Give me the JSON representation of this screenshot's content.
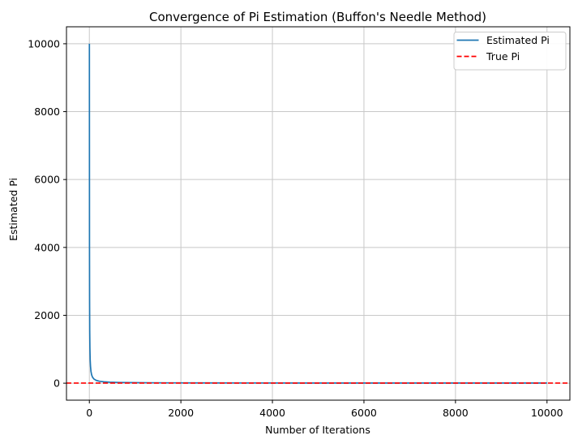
{
  "chart_data": {
    "type": "line",
    "title": "Convergence of Pi Estimation (Buffon's Needle Method)",
    "xlabel": "Number of Iterations",
    "ylabel": "Estimated Pi",
    "xlim": [
      -500,
      10500
    ],
    "ylim": [
      -500,
      10500
    ],
    "x_ticks": [
      0,
      2000,
      4000,
      6000,
      8000,
      10000
    ],
    "y_ticks": [
      0,
      2000,
      4000,
      6000,
      8000,
      10000
    ],
    "grid": true,
    "grid_color": "#c8c8c8",
    "spine_color": "#000000",
    "legend_position": "upper right",
    "legend": [
      {
        "label": "Estimated Pi",
        "color": "#1f77b4",
        "dash": "solid"
      },
      {
        "label": "True Pi",
        "color": "#ff0000",
        "dash": "dashed"
      }
    ],
    "series": [
      {
        "name": "Estimated Pi",
        "color": "#1f77b4",
        "style": "solid",
        "points": [
          [
            1,
            10000
          ],
          [
            3,
            4100
          ],
          [
            5,
            2500
          ],
          [
            8,
            1550
          ],
          [
            12,
            1050
          ],
          [
            18,
            690
          ],
          [
            25,
            500
          ],
          [
            35,
            350
          ],
          [
            50,
            245
          ],
          [
            70,
            175
          ],
          [
            100,
            123
          ],
          [
            150,
            83
          ],
          [
            220,
            58
          ],
          [
            320,
            41
          ],
          [
            450,
            30
          ],
          [
            650,
            21.5
          ],
          [
            900,
            16.4
          ],
          [
            1300,
            12.4
          ],
          [
            1800,
            9.8
          ],
          [
            2500,
            7.9
          ],
          [
            3500,
            6.6
          ],
          [
            5000,
            5.5
          ],
          [
            7000,
            4.9
          ],
          [
            8500,
            4.55
          ],
          [
            10000,
            4.3
          ]
        ]
      }
    ],
    "true_pi": {
      "name": "True Pi",
      "value": 3.14159,
      "color": "#ff0000",
      "style": "dashed"
    }
  }
}
